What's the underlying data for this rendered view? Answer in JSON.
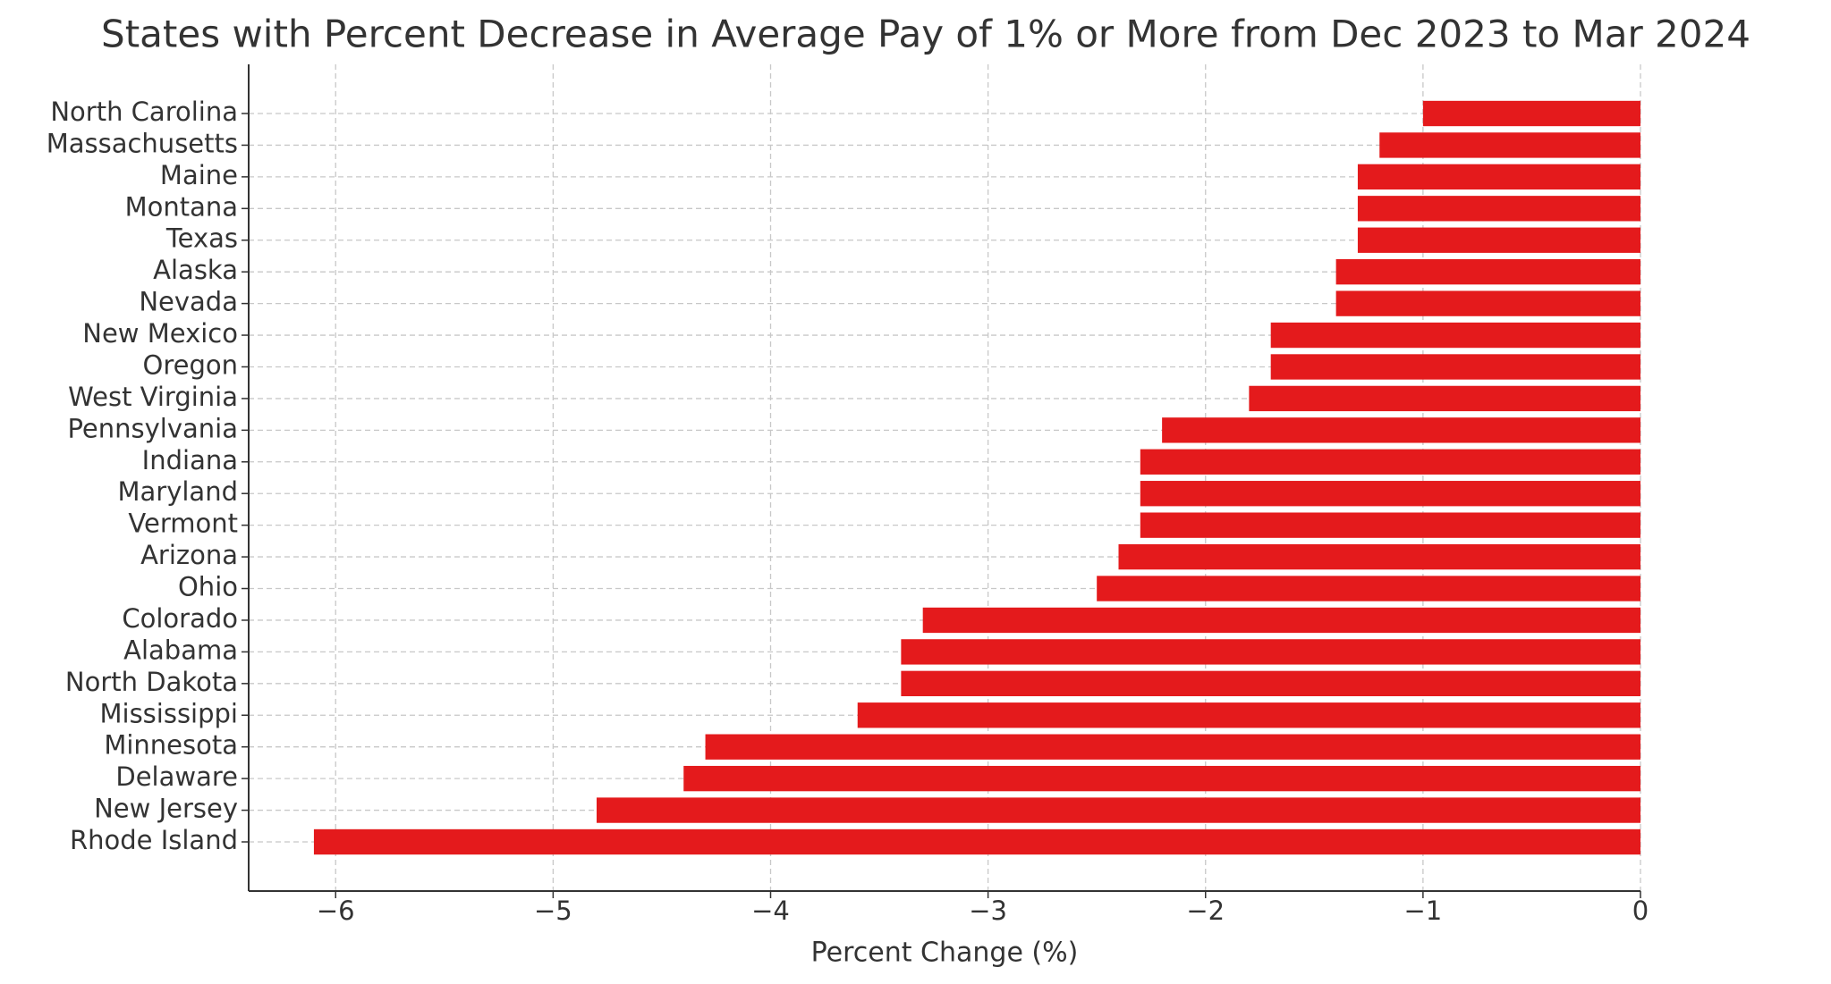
{
  "chart_data": {
    "type": "barh",
    "title": "States with Percent Decrease in Average Pay of 1% or More from Dec 2023 to Mar 2024",
    "x_label": "Percent Change (%)",
    "categories": [
      "North Carolina",
      "Massachusetts",
      "Maine",
      "Montana",
      "Texas",
      "Alaska",
      "Nevada",
      "New Mexico",
      "Oregon",
      "West Virginia",
      "Pennsylvania",
      "Indiana",
      "Maryland",
      "Vermont",
      "Arizona",
      "Ohio",
      "Colorado",
      "Alabama",
      "North Dakota",
      "Mississippi",
      "Minnesota",
      "Delaware",
      "New Jersey",
      "Rhode Island"
    ],
    "values": [
      -1.0,
      -1.2,
      -1.3,
      -1.3,
      -1.3,
      -1.4,
      -1.4,
      -1.7,
      -1.7,
      -1.8,
      -2.2,
      -2.3,
      -2.3,
      -2.3,
      -2.4,
      -2.5,
      -3.3,
      -3.4,
      -3.4,
      -3.6,
      -4.3,
      -4.4,
      -4.8,
      -6.1
    ],
    "color": "#e41a1c",
    "xlim": [
      -6.4,
      0
    ],
    "xticks": [
      {
        "value": -6,
        "label": "−6"
      },
      {
        "value": -5,
        "label": "−5"
      },
      {
        "value": -4,
        "label": "−4"
      },
      {
        "value": -3,
        "label": "−3"
      },
      {
        "value": -2,
        "label": "−2"
      },
      {
        "value": -1,
        "label": "−1"
      },
      0
    ],
    "grid": true
  }
}
